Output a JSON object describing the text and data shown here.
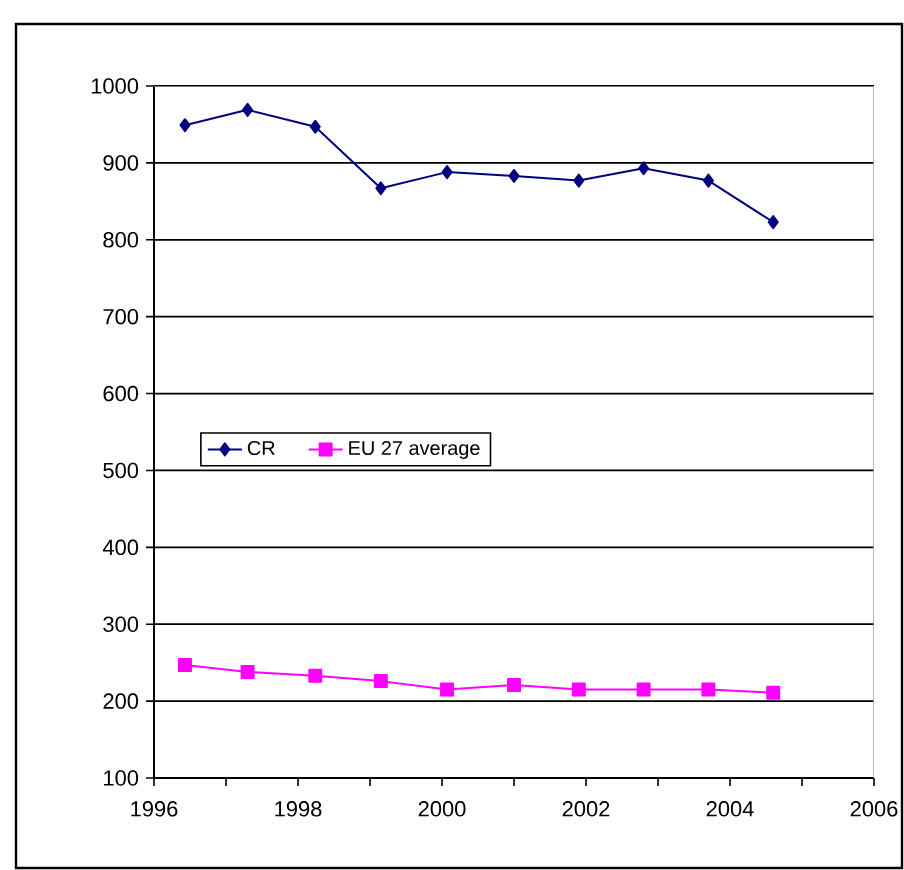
{
  "chart_data": {
    "type": "line",
    "x": [
      1996.43,
      1997.3,
      1998.24,
      1999.15,
      2000.07,
      2001.0,
      2001.9,
      2002.8,
      2003.7,
      2004.6
    ],
    "series": [
      {
        "name": "CR",
        "color": "#000080",
        "marker": "diamond",
        "values": [
          949,
          969,
          947,
          867,
          888,
          883,
          877,
          893,
          877,
          823
        ]
      },
      {
        "name": "EU 27 average",
        "color": "#ff00ff",
        "marker": "square",
        "values": [
          247,
          238,
          233,
          226,
          215,
          221,
          215,
          215,
          215,
          211
        ]
      }
    ],
    "xlim": [
      1996,
      2006
    ],
    "xticks": [
      1996,
      1998,
      2000,
      2002,
      2004,
      2006
    ],
    "ylim": [
      100,
      1000
    ],
    "yticks": [
      100,
      200,
      300,
      400,
      500,
      600,
      700,
      800,
      900,
      1000
    ],
    "grid": "y",
    "legend": "left",
    "line_style": "solid"
  }
}
